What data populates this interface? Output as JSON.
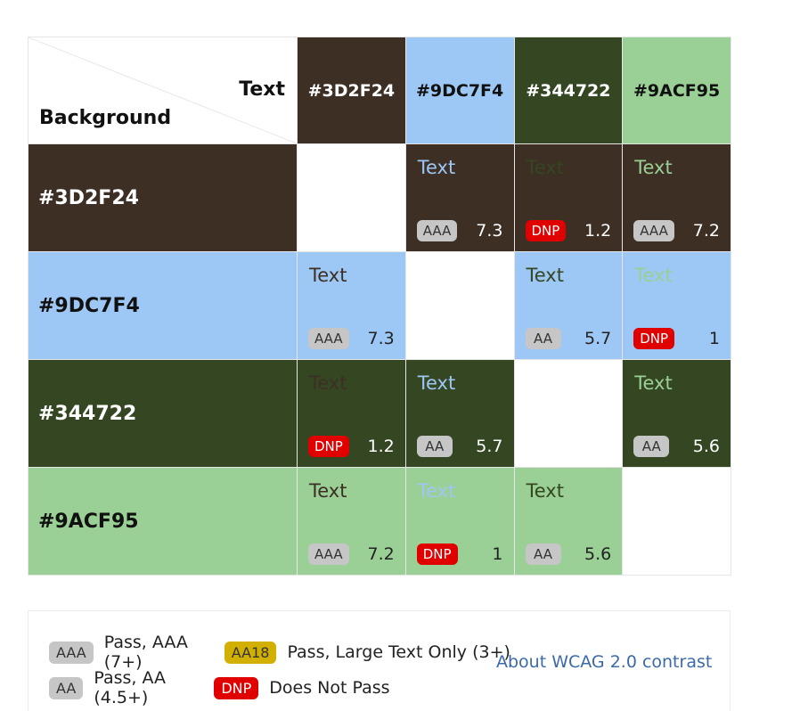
{
  "header": {
    "text_label": "Text",
    "background_label": "Background"
  },
  "colors": [
    "#3D2F24",
    "#9DC7F4",
    "#344722",
    "#9ACF95"
  ],
  "columns": [
    {
      "label": "#3D2F24",
      "color": "#3D2F24",
      "label_color": "#ffffff"
    },
    {
      "label": "#9DC7F4",
      "color": "#9DC7F4",
      "label_color": "#111111"
    },
    {
      "label": "#344722",
      "color": "#344722",
      "label_color": "#ffffff"
    },
    {
      "label": "#9ACF95",
      "color": "#9ACF95",
      "label_color": "#111111"
    }
  ],
  "rows": [
    {
      "label": "#3D2F24",
      "color": "#3D2F24",
      "label_color": "#ffffff",
      "cells": [
        null,
        {
          "sample": "Text",
          "text_color": "#9DC7F4",
          "badge": "AAA",
          "ratio": "7.3",
          "ratio_color": "#ffffff"
        },
        {
          "sample": "Text",
          "text_color": "#344722",
          "badge": "DNP",
          "ratio": "1.2",
          "ratio_color": "#ffffff"
        },
        {
          "sample": "Text",
          "text_color": "#9ACF95",
          "badge": "AAA",
          "ratio": "7.2",
          "ratio_color": "#ffffff"
        }
      ]
    },
    {
      "label": "#9DC7F4",
      "color": "#9DC7F4",
      "label_color": "#111111",
      "cells": [
        {
          "sample": "Text",
          "text_color": "#3D2F24",
          "badge": "AAA",
          "ratio": "7.3",
          "ratio_color": "#222222"
        },
        null,
        {
          "sample": "Text",
          "text_color": "#344722",
          "badge": "AA",
          "ratio": "5.7",
          "ratio_color": "#222222"
        },
        {
          "sample": "Text",
          "text_color": "#9ACF95",
          "badge": "DNP",
          "ratio": "1",
          "ratio_color": "#222222"
        }
      ]
    },
    {
      "label": "#344722",
      "color": "#344722",
      "label_color": "#ffffff",
      "cells": [
        {
          "sample": "Text",
          "text_color": "#3D2F24",
          "badge": "DNP",
          "ratio": "1.2",
          "ratio_color": "#ffffff"
        },
        {
          "sample": "Text",
          "text_color": "#9DC7F4",
          "badge": "AA",
          "ratio": "5.7",
          "ratio_color": "#ffffff"
        },
        null,
        {
          "sample": "Text",
          "text_color": "#9ACF95",
          "badge": "AA",
          "ratio": "5.6",
          "ratio_color": "#ffffff"
        }
      ]
    },
    {
      "label": "#9ACF95",
      "color": "#9ACF95",
      "label_color": "#111111",
      "cells": [
        {
          "sample": "Text",
          "text_color": "#3D2F24",
          "badge": "AAA",
          "ratio": "7.2",
          "ratio_color": "#222222"
        },
        {
          "sample": "Text",
          "text_color": "#9DC7F4",
          "badge": "DNP",
          "ratio": "1",
          "ratio_color": "#222222"
        },
        {
          "sample": "Text",
          "text_color": "#344722",
          "badge": "AA",
          "ratio": "5.6",
          "ratio_color": "#222222"
        },
        null
      ]
    }
  ],
  "legend": {
    "aaa_badge": "AAA",
    "aaa_text": "Pass, AAA (7+)",
    "aa18_badge": "AA18",
    "aa18_text": "Pass, Large Text Only (3+)",
    "aa_badge": "AA",
    "aa_text": "Pass, AA (4.5+)",
    "dnp_badge": "DNP",
    "dnp_text": "Does Not Pass",
    "link_text": "About WCAG 2.0 contrast"
  }
}
